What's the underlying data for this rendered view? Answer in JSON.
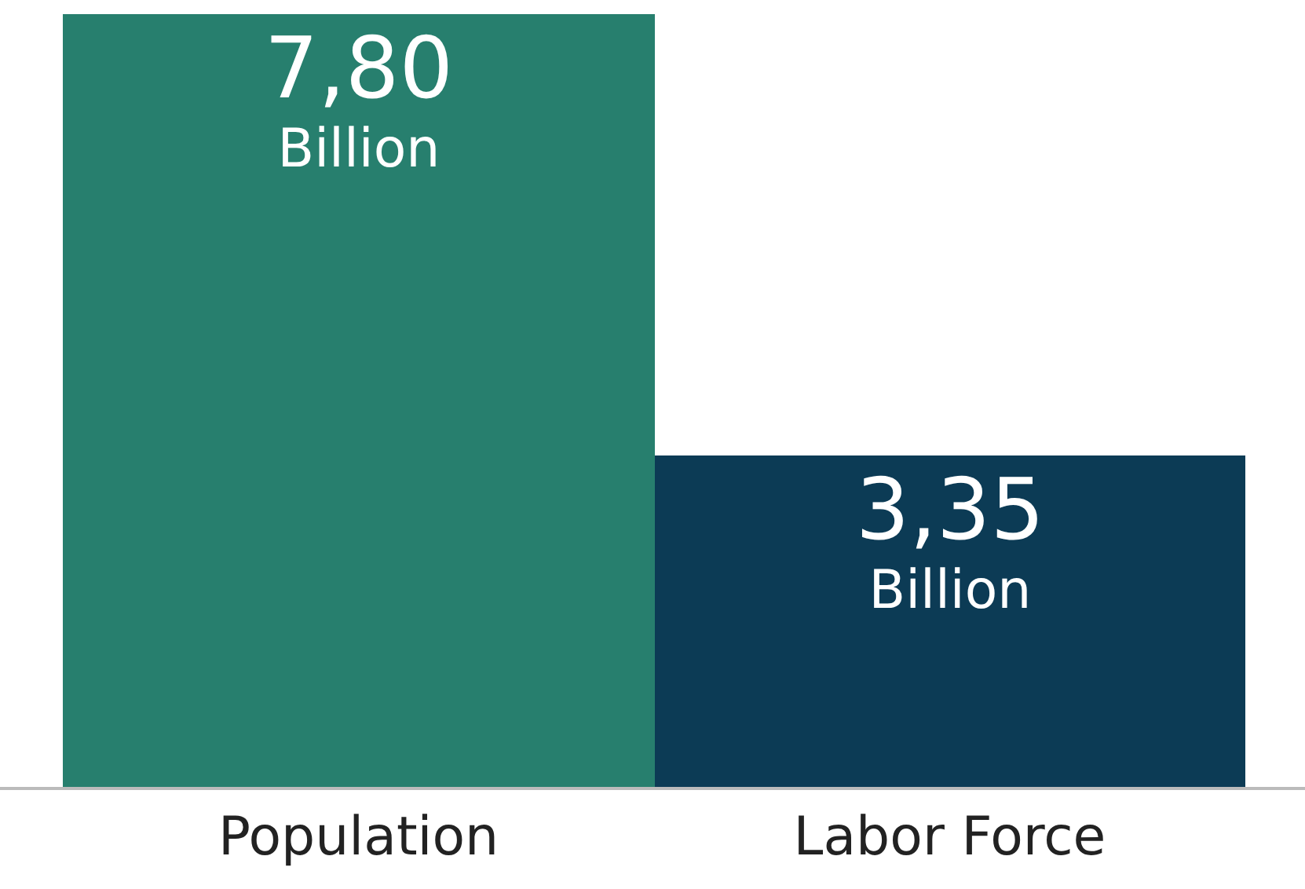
{
  "chart_data": {
    "type": "bar",
    "categories": [
      "Population",
      "Labor Force"
    ],
    "values": [
      7.8,
      3.35
    ],
    "colors": [
      "#277f6e",
      "#0c3b55"
    ],
    "value_labels": [
      "7,80\nBillion",
      "3,35\nBillion"
    ]
  }
}
